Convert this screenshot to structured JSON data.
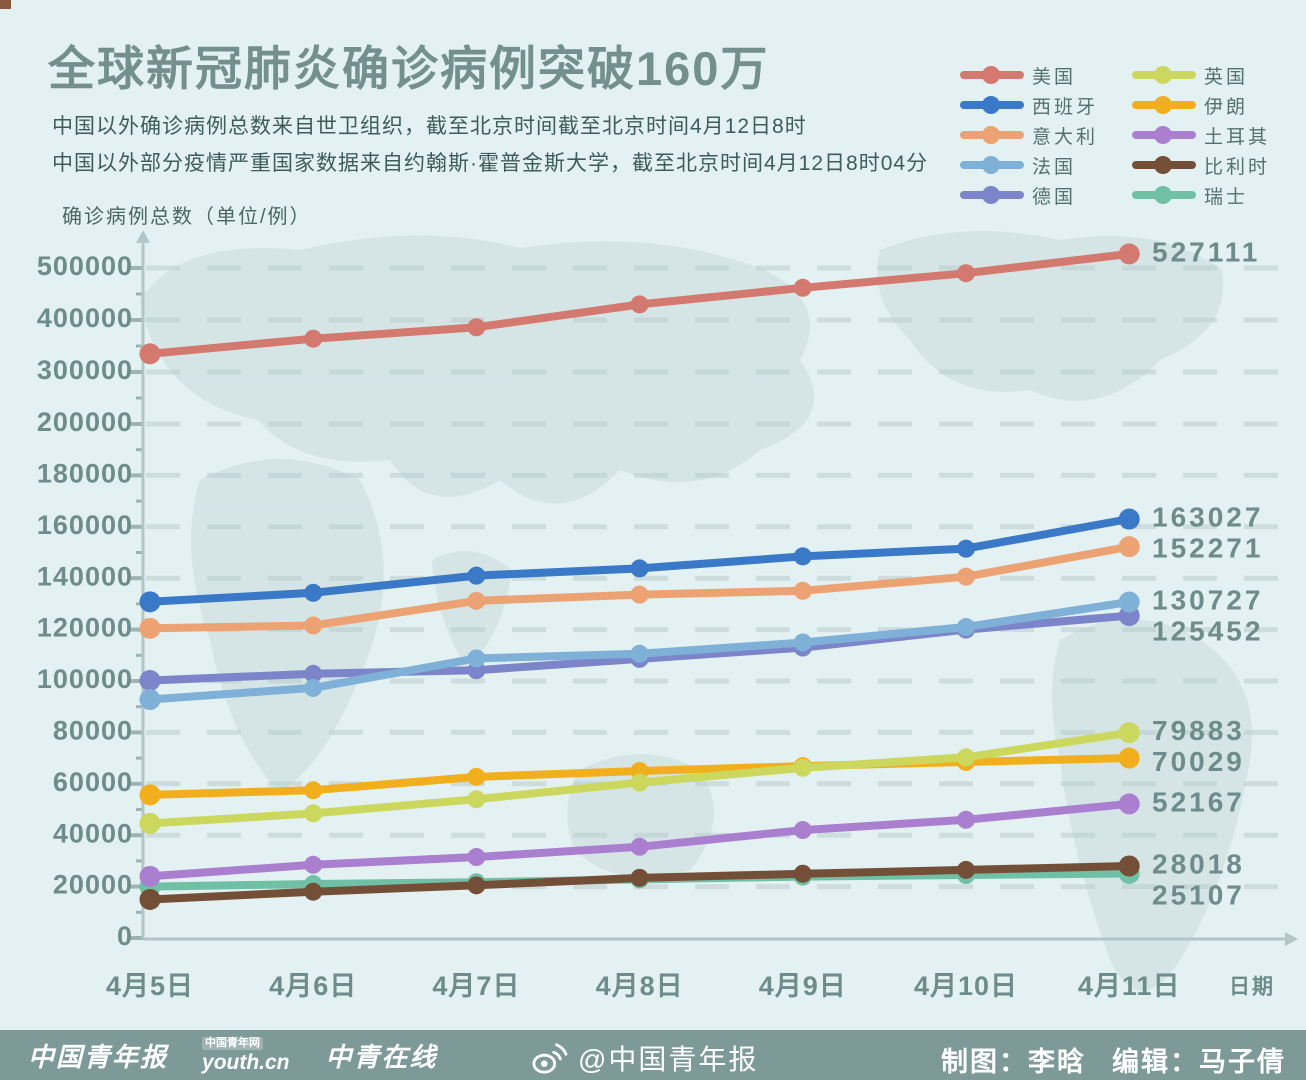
{
  "page": {
    "title": "全球新冠肺炎确诊病例突破160万",
    "subtitle_line1": "中国以外确诊病例总数来自世卫组织，截至北京时间截至北京时间4月12日8时",
    "subtitle_line2": "中国以外部分疫情严重国家数据来自约翰斯·霍普金斯大学，截至北京时间4月12日8时04分",
    "y_axis_title": "确诊病例总数（单位/例）",
    "x_axis_title": "日期"
  },
  "colors": {
    "background": "#e3f1f2",
    "map_silhouette": "#cdddde",
    "heading_text": "#73908d",
    "axis_text": "#6d8c8b",
    "footer_bar": "#7e9a98",
    "footer_text": "#fdffff"
  },
  "footer": {
    "logo_cyd": "中国青年报",
    "logo_youth_top": "中国青年网",
    "logo_youth_main": "youth.cn",
    "logo_zqzx": "中青在线",
    "weibo_handle": "@中国青年报",
    "credit_design": "制图：李晗",
    "credit_editor": "编辑：马子倩"
  },
  "chart_data": {
    "type": "line",
    "title": "全球新冠肺炎确诊病例突破160万",
    "xlabel": "日期",
    "ylabel": "确诊病例总数（单位/例）",
    "x": [
      "4月5日",
      "4月6日",
      "4月7日",
      "4月8日",
      "4月9日",
      "4月10日",
      "4月11日"
    ],
    "y_ticks": [
      0,
      20000,
      40000,
      60000,
      80000,
      100000,
      120000,
      140000,
      160000,
      180000,
      200000,
      300000,
      400000,
      500000
    ],
    "y_scale_note": "broken axis: equal spacing per 20000 up to 200000, then per 100000 from 200000 to 500000",
    "grid": "dashed horizontal gridlines",
    "legend_position": "top-right, two columns",
    "series": [
      {
        "name": "美国",
        "color": "#d4796f",
        "end_label": "527111",
        "values": [
          335000,
          364000,
          386000,
          430000,
          462000,
          490000,
          527111
        ]
      },
      {
        "name": "西班牙",
        "color": "#3a78c8",
        "end_label": "163027",
        "values": [
          130800,
          134300,
          141000,
          143800,
          148500,
          151500,
          163027
        ]
      },
      {
        "name": "意大利",
        "color": "#eca272",
        "end_label": "152271",
        "values": [
          120500,
          121600,
          131200,
          133600,
          135100,
          140600,
          152271
        ]
      },
      {
        "name": "法国",
        "color": "#7fb0d8",
        "end_label": "130727",
        "values": [
          92800,
          97300,
          108800,
          110600,
          115000,
          121000,
          130727
        ]
      },
      {
        "name": "德国",
        "color": "#7c85c9",
        "end_label": "125452",
        "values": [
          100200,
          102800,
          104200,
          108600,
          113000,
          120000,
          125452
        ]
      },
      {
        "name": "英国",
        "color": "#ccd75e",
        "end_label": "79883",
        "values": [
          44600,
          48500,
          54000,
          60500,
          66200,
          70300,
          79883
        ]
      },
      {
        "name": "伊朗",
        "color": "#f2af1d",
        "end_label": "70029",
        "values": [
          55700,
          57500,
          62700,
          65000,
          66900,
          68500,
          70029
        ]
      },
      {
        "name": "土耳其",
        "color": "#ab7fd0",
        "end_label": "52167",
        "values": [
          24000,
          28500,
          31500,
          35500,
          42000,
          46000,
          52167
        ]
      },
      {
        "name": "比利时",
        "color": "#744f37",
        "end_label": "28018",
        "values": [
          15000,
          18000,
          20500,
          23400,
          25000,
          26500,
          28018
        ]
      },
      {
        "name": "瑞士",
        "color": "#6fc0a5",
        "end_label": "25107",
        "values": [
          20000,
          21000,
          21700,
          22800,
          23900,
          24500,
          25107
        ]
      }
    ]
  }
}
